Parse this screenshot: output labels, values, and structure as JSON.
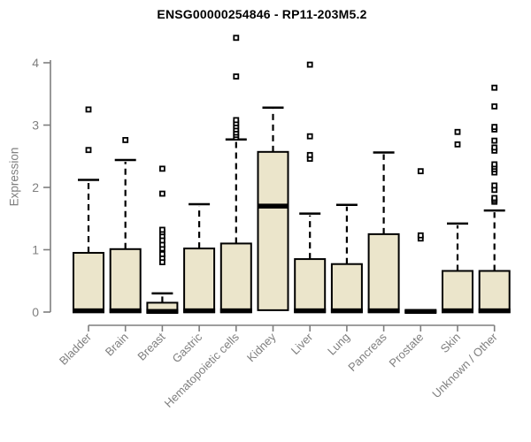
{
  "chart_data": {
    "type": "boxplot",
    "title": "ENSG00000254846 - RP11-203M5.2",
    "ylabel": "Expression",
    "xlabel": "",
    "ylim": [
      0,
      4
    ],
    "yticks": [
      0,
      1,
      2,
      3,
      4
    ],
    "grid": false,
    "legend": "none",
    "categories": [
      "Bladder",
      "Brain",
      "Breast",
      "Gastric",
      "Hematopoietic cells",
      "Kidney",
      "Liver",
      "Lung",
      "Pancreas",
      "Prostate",
      "Skin",
      "Unknown / Other"
    ],
    "series": [
      {
        "name": "Bladder",
        "q1": 0,
        "median": 0.02,
        "q3": 0.95,
        "whisker_low": 0,
        "whisker_high": 2.12,
        "outliers": [
          2.6,
          3.25
        ]
      },
      {
        "name": "Brain",
        "q1": 0,
        "median": 0.02,
        "q3": 1.01,
        "whisker_low": 0,
        "whisker_high": 2.44,
        "outliers": [
          2.76
        ]
      },
      {
        "name": "Breast",
        "q1": 0,
        "median": 0.01,
        "q3": 0.15,
        "whisker_low": 0,
        "whisker_high": 0.3,
        "outliers": [
          0.8,
          0.87,
          0.93,
          1.02,
          1.08,
          1.15,
          1.22,
          1.28,
          1.32,
          1.9,
          2.3
        ]
      },
      {
        "name": "Gastric",
        "q1": 0,
        "median": 0.02,
        "q3": 1.02,
        "whisker_low": 0,
        "whisker_high": 1.73,
        "outliers": []
      },
      {
        "name": "Hematopoietic cells",
        "q1": 0,
        "median": 0.02,
        "q3": 1.1,
        "whisker_low": 0,
        "whisker_high": 2.77,
        "outliers": [
          2.8,
          2.84,
          2.88,
          2.93,
          2.98,
          3.03,
          3.08,
          3.78,
          4.4
        ]
      },
      {
        "name": "Kidney",
        "q1": 0.03,
        "median": 1.7,
        "q3": 2.57,
        "whisker_low": 0,
        "whisker_high": 3.28,
        "outliers": []
      },
      {
        "name": "Liver",
        "q1": 0,
        "median": 0.02,
        "q3": 0.85,
        "whisker_low": 0,
        "whisker_high": 1.58,
        "outliers": [
          2.46,
          2.52,
          2.82,
          3.97
        ]
      },
      {
        "name": "Lung",
        "q1": 0,
        "median": 0.02,
        "q3": 0.77,
        "whisker_low": 0,
        "whisker_high": 1.72,
        "outliers": []
      },
      {
        "name": "Pancreas",
        "q1": 0,
        "median": 0.02,
        "q3": 1.25,
        "whisker_low": 0,
        "whisker_high": 2.56,
        "outliers": []
      },
      {
        "name": "Prostate",
        "q1": 0,
        "median": 0.01,
        "q3": 0.02,
        "whisker_low": 0,
        "whisker_high": 0.02,
        "outliers": [
          1.18,
          1.23,
          2.26
        ]
      },
      {
        "name": "Skin",
        "q1": 0,
        "median": 0.02,
        "q3": 0.66,
        "whisker_low": 0,
        "whisker_high": 1.42,
        "outliers": [
          2.69,
          2.89
        ]
      },
      {
        "name": "Unknown / Other",
        "q1": 0,
        "median": 0.02,
        "q3": 0.66,
        "whisker_low": 0,
        "whisker_high": 1.63,
        "outliers": [
          1.77,
          1.8,
          1.83,
          1.96,
          2.03,
          2.24,
          2.29,
          2.33,
          2.37,
          2.59,
          2.64,
          2.75,
          2.93,
          2.97,
          3.3,
          3.6
        ]
      }
    ],
    "colors": {
      "box_fill": "#EBE5CB",
      "box_border": "#000000",
      "median": "#000000",
      "whisker": "#000000",
      "outlier_stroke": "#000000",
      "outlier_fill": "#ffffff",
      "axis": "#7f7f7f",
      "tick_label": "#7f7f7f",
      "title": "#000000",
      "background": "#ffffff"
    }
  }
}
